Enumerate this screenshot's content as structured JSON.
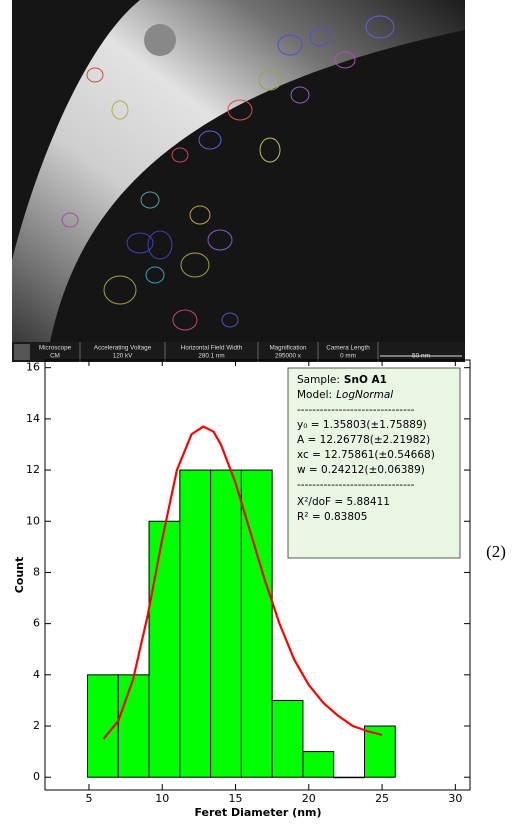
{
  "image": {
    "info_bar": [
      {
        "label": "Microscope",
        "value": "CM"
      },
      {
        "label": "Accelerating Voltage",
        "value": "120 kV"
      },
      {
        "label": "Horizontal Field Width",
        "value": "280.1 nm"
      },
      {
        "label": "Magnification",
        "value": "295000 x"
      },
      {
        "label": "Camera Length",
        "value": "0 mm"
      }
    ],
    "scale_bar": "50 nm"
  },
  "figure_label": "(2)",
  "chart_data": {
    "type": "histogram",
    "x_label": "Feret Diameter (nm)",
    "y_label": "Count",
    "bins": [
      4.9,
      7.0,
      9.1,
      11.2,
      13.3,
      15.4,
      17.5,
      19.6,
      21.7,
      23.8,
      25.9
    ],
    "values": [
      4,
      4,
      10,
      12,
      12,
      12,
      3,
      1,
      0,
      2
    ],
    "color": "#00ff00",
    "fit": {
      "color": "#ff0000",
      "x": [
        6,
        7,
        8,
        9,
        10,
        11,
        12,
        12.8,
        13.5,
        14,
        15,
        16,
        17,
        18,
        19,
        20,
        21,
        22,
        23,
        24,
        25
      ],
      "values": [
        1.5,
        2.2,
        3.8,
        6.3,
        9.3,
        12.0,
        13.4,
        13.7,
        13.5,
        13.0,
        11.5,
        9.6,
        7.7,
        6.0,
        4.6,
        3.6,
        2.9,
        2.4,
        2.0,
        1.8,
        1.65
      ]
    },
    "xlim": [
      2,
      31
    ],
    "ylim": [
      -0.5,
      16.3
    ],
    "xticks": [
      5,
      10,
      15,
      20,
      25,
      30
    ],
    "yticks": [
      0,
      2,
      4,
      6,
      8,
      10,
      12,
      14,
      16
    ],
    "annotation": {
      "sample": {
        "label": "Sample:",
        "value": "SnO A1"
      },
      "model": {
        "label": "Model:",
        "value": "LogNormal"
      },
      "separator": "-------------------------------",
      "params": [
        "y₀ = 1.35803(±1.75889)",
        "A  = 12.26778(±2.21982)",
        "xc = 12.75861(±0.54668)",
        "w  = 0.24212(±0.06389)"
      ],
      "stats": [
        "Χ²/doF = 5.88411",
        "R² = 0.83805"
      ]
    }
  }
}
